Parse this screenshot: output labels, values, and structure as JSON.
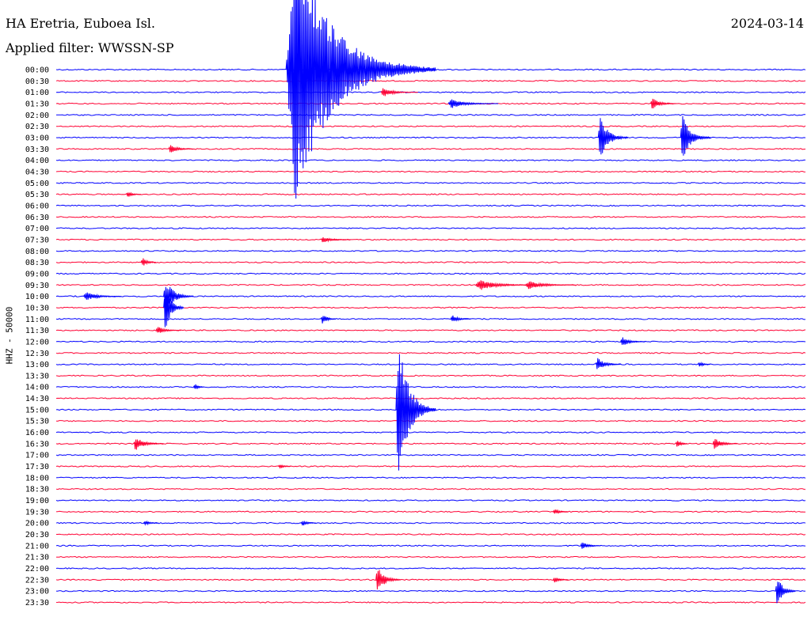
{
  "header": {
    "station": "HA Eretria, Euboea Isl.",
    "date": "2024-03-14",
    "filter": "Applied filter: WWSSN-SP"
  },
  "colors": {
    "line_a": "#0000ff",
    "line_b": "#ff0033",
    "text": "#000000",
    "background": "#ffffff"
  },
  "chart_data": {
    "type": "line",
    "subtype": "helicorder",
    "ylabel": "HHZ - 50000",
    "rows": [
      "00:00",
      "00:30",
      "01:00",
      "01:30",
      "02:00",
      "02:30",
      "03:00",
      "03:30",
      "04:00",
      "04:30",
      "05:00",
      "05:30",
      "06:00",
      "06:30",
      "07:00",
      "07:30",
      "08:00",
      "08:30",
      "09:00",
      "09:30",
      "10:00",
      "10:30",
      "11:00",
      "11:30",
      "12:00",
      "12:30",
      "13:00",
      "13:30",
      "14:00",
      "14:30",
      "15:00",
      "15:30",
      "16:00",
      "16:30",
      "17:00",
      "17:30",
      "18:00",
      "18:30",
      "19:00",
      "19:30",
      "20:00",
      "20:30",
      "21:00",
      "21:30",
      "22:00",
      "22:30",
      "23:00",
      "23:30"
    ],
    "row_minutes": 30,
    "line_colors": [
      "#0000ff",
      "#ff0033"
    ],
    "events": [
      {
        "row": 0,
        "minute": 9.2,
        "amp": 170,
        "color": "#0000ff",
        "dur": 6
      },
      {
        "row": 2,
        "minute": 13.0,
        "amp": 6,
        "color": "#ff0033",
        "dur": 1.5
      },
      {
        "row": 3,
        "minute": 15.7,
        "amp": 6,
        "color": "#0000ff",
        "dur": 2
      },
      {
        "row": 3,
        "minute": 23.8,
        "amp": 8,
        "color": "#ff0033",
        "dur": 1
      },
      {
        "row": 6,
        "minute": 21.7,
        "amp": 28,
        "color": "#0000ff",
        "dur": 1.2
      },
      {
        "row": 6,
        "minute": 25.0,
        "amp": 30,
        "color": "#0000ff",
        "dur": 1.2
      },
      {
        "row": 7,
        "minute": 4.5,
        "amp": 6,
        "color": "#ff0033",
        "dur": 1
      },
      {
        "row": 11,
        "minute": 2.8,
        "amp": 4,
        "color": "#ff0033",
        "dur": 0.6
      },
      {
        "row": 15,
        "minute": 10.6,
        "amp": 4,
        "color": "#ff0033",
        "dur": 1.2
      },
      {
        "row": 17,
        "minute": 3.4,
        "amp": 6,
        "color": "#ff0033",
        "dur": 0.6
      },
      {
        "row": 19,
        "minute": 16.8,
        "amp": 7,
        "color": "#ff0033",
        "dur": 2.5
      },
      {
        "row": 19,
        "minute": 18.8,
        "amp": 6,
        "color": "#ff0033",
        "dur": 2
      },
      {
        "row": 20,
        "minute": 1.1,
        "amp": 6,
        "color": "#0000ff",
        "dur": 1.5
      },
      {
        "row": 20,
        "minute": 4.3,
        "amp": 22,
        "color": "#0000ff",
        "dur": 1.2
      },
      {
        "row": 21,
        "minute": 4.3,
        "amp": 30,
        "color": "#0000ff",
        "dur": 0.8
      },
      {
        "row": 22,
        "minute": 10.6,
        "amp": 7,
        "color": "#0000ff",
        "dur": 0.6
      },
      {
        "row": 22,
        "minute": 15.8,
        "amp": 5,
        "color": "#0000ff",
        "dur": 0.8
      },
      {
        "row": 23,
        "minute": 4.0,
        "amp": 5,
        "color": "#ff0033",
        "dur": 1
      },
      {
        "row": 24,
        "minute": 22.6,
        "amp": 6,
        "color": "#0000ff",
        "dur": 1
      },
      {
        "row": 26,
        "minute": 21.6,
        "amp": 9,
        "color": "#0000ff",
        "dur": 1
      },
      {
        "row": 26,
        "minute": 25.7,
        "amp": 4,
        "color": "#0000ff",
        "dur": 0.5
      },
      {
        "row": 28,
        "minute": 5.5,
        "amp": 4,
        "color": "#0000ff",
        "dur": 0.4
      },
      {
        "row": 30,
        "minute": 13.6,
        "amp": 95,
        "color": "#0000ff",
        "dur": 1.6
      },
      {
        "row": 33,
        "minute": 3.1,
        "amp": 9,
        "color": "#ff0033",
        "dur": 1.2
      },
      {
        "row": 33,
        "minute": 24.8,
        "amp": 5,
        "color": "#ff0033",
        "dur": 0.5
      },
      {
        "row": 33,
        "minute": 26.3,
        "amp": 8,
        "color": "#ff0033",
        "dur": 1
      },
      {
        "row": 35,
        "minute": 8.9,
        "amp": 3,
        "color": "#ff0033",
        "dur": 0.5
      },
      {
        "row": 39,
        "minute": 19.9,
        "amp": 4,
        "color": "#ff0033",
        "dur": 0.6
      },
      {
        "row": 40,
        "minute": 3.5,
        "amp": 3,
        "color": "#0000ff",
        "dur": 0.6
      },
      {
        "row": 40,
        "minute": 9.8,
        "amp": 4,
        "color": "#0000ff",
        "dur": 0.6
      },
      {
        "row": 42,
        "minute": 21.0,
        "amp": 5,
        "color": "#0000ff",
        "dur": 0.8
      },
      {
        "row": 45,
        "minute": 12.8,
        "amp": 18,
        "color": "#ff0033",
        "dur": 1
      },
      {
        "row": 45,
        "minute": 19.9,
        "amp": 4,
        "color": "#ff0033",
        "dur": 0.6
      },
      {
        "row": 46,
        "minute": 28.8,
        "amp": 20,
        "color": "#0000ff",
        "dur": 0.8
      }
    ]
  }
}
